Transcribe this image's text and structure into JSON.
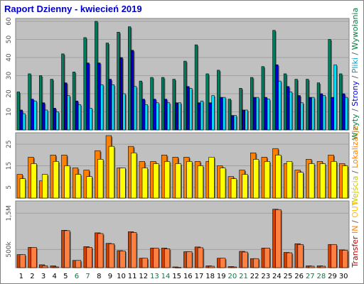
{
  "title": "Raport Dzienny -  kwiecień 2019",
  "right_legends": {
    "top": [
      {
        "text": "Wizyty",
        "color": "#008040"
      },
      {
        "text": " / ",
        "color": "#555555"
      },
      {
        "text": "Strony",
        "color": "#0000d8"
      },
      {
        "text": " / ",
        "color": "#555555"
      },
      {
        "text": "Pliki",
        "color": "#00a0c8"
      },
      {
        "text": " / ",
        "color": "#555555"
      },
      {
        "text": "Wywołania",
        "color": "#008040"
      }
    ],
    "middle": [
      {
        "text": "Wejścia",
        "color": "#c8c800"
      },
      {
        "text": " / ",
        "color": "#555555"
      },
      {
        "text": "Lokalizacje",
        "color": "#ff8000"
      }
    ],
    "bottom": [
      {
        "text": "Transfer",
        "color": "#c00000"
      },
      {
        "text": " IN ",
        "color": "#ff8000"
      },
      {
        "text": " / ",
        "color": "#555555"
      },
      {
        "text": " OUT ",
        "color": "#ffc000"
      }
    ]
  },
  "chart_data": {
    "type": "bar",
    "x": [
      "1",
      "2",
      "3",
      "4",
      "5",
      "6",
      "7",
      "8",
      "9",
      "10",
      "11",
      "12",
      "13",
      "14",
      "15",
      "16",
      "17",
      "18",
      "19",
      "20",
      "21",
      "22",
      "23",
      "24",
      "25",
      "26",
      "27",
      "28",
      "29",
      "30"
    ],
    "weekend_days": [
      "6",
      "7",
      "13",
      "14",
      "20",
      "21",
      "27",
      "28"
    ],
    "colors": {
      "weekday_label": "#000000",
      "weekend_label": "#008040",
      "plot_bg": "#c0c0c0",
      "frame": "#808080"
    },
    "panels": [
      {
        "name": "top",
        "yticks": [
          10,
          20,
          30,
          40,
          50,
          60
        ],
        "ylim": [
          0,
          60
        ],
        "series": [
          {
            "color": "#008060",
            "values": [
              21,
              31,
              30,
              28,
              42,
              32,
              51,
              60,
              48,
              54,
              57,
              27,
              29,
              29,
              28,
              38,
              47,
              31,
              33,
              17,
              23,
              29,
              35,
              55,
              31,
              28,
              28,
              26,
              50,
              31
            ]
          },
          {
            "color": "#0000d0",
            "values": [
              11,
              17,
              15,
              12,
              26,
              16,
              37,
              37,
              28,
              40,
              44,
              17,
              17,
              17,
              15,
              24,
              15,
              15,
              18,
              8,
              11,
              18,
              18,
              36,
              24,
              19,
              18,
              20,
              18,
              20
            ]
          },
          {
            "color": "#00e0ff",
            "values": [
              9,
              16,
              11,
              10,
              19,
              14,
              12,
              25,
              25,
              20,
              24,
              14,
              15,
              15,
              15,
              23,
              16,
              19,
              18,
              8,
              11,
              18,
              17,
              27,
              21,
              15,
              18,
              19,
              36,
              18
            ]
          }
        ]
      },
      {
        "name": "middle",
        "yticks": [
          5,
          15,
          25
        ],
        "ylim": [
          0,
          29
        ],
        "series": [
          {
            "color": "#ff8000",
            "values": [
              11,
              19,
              8,
              20,
              20,
              14,
              13,
              22,
              29,
              14,
              24,
              17,
              17,
              20,
              19,
              19,
              17,
              17,
              15,
              10,
              13,
              21,
              19,
              23,
              16,
              13,
              18,
              17,
              20,
              16
            ]
          },
          {
            "color": "#ffff00",
            "values": [
              9,
              16,
              11,
              17,
              15,
              11,
              10,
              18,
              24,
              14,
              21,
              14,
              16,
              17,
              16,
              17,
              15,
              19,
              14,
              9,
              11,
              18,
              17,
              20,
              17,
              12,
              16,
              16,
              17,
              15
            ]
          }
        ]
      },
      {
        "name": "bottom",
        "yticks": [
          500,
          1500
        ],
        "ytick_labels": [
          "500k",
          "1,5M"
        ],
        "ylim": [
          0,
          1760
        ],
        "series": [
          {
            "color": "#d04000",
            "values": [
              360,
              560,
              80,
              50,
              1030,
              200,
              580,
              960,
              670,
              470,
              990,
              260,
              540,
              540,
              20,
              440,
              570,
              50,
              260,
              30,
              450,
              250,
              540,
              1610,
              420,
              660,
              50,
              50,
              640,
              490
            ]
          },
          {
            "color": "#ff8040",
            "values": [
              360,
              560,
              50,
              20,
              1020,
              200,
              560,
              940,
              660,
              460,
              970,
              260,
              540,
              520,
              10,
              440,
              550,
              40,
              260,
              20,
              430,
              250,
              540,
              1600,
              410,
              640,
              40,
              40,
              640,
              480
            ]
          }
        ]
      }
    ]
  }
}
